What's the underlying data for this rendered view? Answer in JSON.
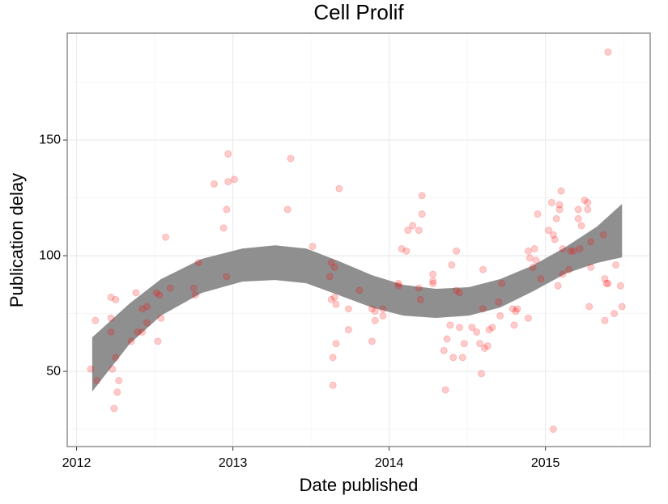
{
  "chart_data": {
    "type": "scatter",
    "title": "Cell Prolif",
    "x_label": "Date published",
    "y_label": "Publication delay",
    "xlim": [
      2011.94,
      2015.67
    ],
    "ylim": [
      17.5,
      196.2
    ],
    "xticks": [
      2012,
      2013,
      2014,
      2015
    ],
    "yticks": [
      50,
      100,
      150
    ],
    "grid": true,
    "series": [
      {
        "color": "#ff0000",
        "opacity": 0.2,
        "x": [
          2012.09,
          2012.12,
          2012.13,
          2012.22,
          2012.22,
          2012.22,
          2012.23,
          2012.24,
          2012.25,
          2012.25,
          2012.26,
          2012.27,
          2012.35,
          2012.38,
          2012.39,
          2012.42,
          2012.42,
          2012.45,
          2012.45,
          2012.51,
          2012.52,
          2012.53,
          2012.54,
          2012.57,
          2012.6,
          2012.75,
          2012.76,
          2012.78,
          2012.88,
          2012.94,
          2012.96,
          2012.96,
          2012.97,
          2012.97,
          2013.01,
          2013.35,
          2013.37,
          2013.51,
          2013.62,
          2013.63,
          2013.63,
          2013.64,
          2013.64,
          2013.65,
          2013.65,
          2013.66,
          2013.66,
          2013.68,
          2013.74,
          2013.74,
          2013.81,
          2013.89,
          2013.89,
          2013.91,
          2013.91,
          2013.96,
          2013.96,
          2014.06,
          2014.06,
          2014.08,
          2014.11,
          2014.12,
          2014.15,
          2014.19,
          2014.19,
          2014.2,
          2014.21,
          2014.21,
          2014.28,
          2014.28,
          2014.28,
          2014.35,
          2014.36,
          2014.37,
          2014.39,
          2014.4,
          2014.41,
          2014.43,
          2014.43,
          2014.45,
          2014.45,
          2014.47,
          2014.48,
          2014.53,
          2014.56,
          2014.58,
          2014.59,
          2014.6,
          2014.6,
          2014.61,
          2014.63,
          2014.64,
          2014.66,
          2014.7,
          2014.71,
          2014.72,
          2014.79,
          2014.8,
          2014.81,
          2014.82,
          2014.89,
          2014.89,
          2014.9,
          2014.92,
          2014.93,
          2014.94,
          2014.95,
          2014.97,
          2015.02,
          2015.04,
          2015.05,
          2015.05,
          2015.06,
          2015.07,
          2015.08,
          2015.09,
          2015.09,
          2015.1,
          2015.11,
          2015.11,
          2015.15,
          2015.16,
          2015.18,
          2015.21,
          2015.21,
          2015.22,
          2015.23,
          2015.25,
          2015.27,
          2015.27,
          2015.28,
          2015.29,
          2015.29,
          2015.37,
          2015.38,
          2015.38,
          2015.39,
          2015.4,
          2015.4,
          2015.44,
          2015.45,
          2015.48,
          2015.49
        ],
        "values": [
          51,
          72,
          46,
          82,
          67,
          73,
          51,
          34,
          81,
          56,
          41,
          46,
          63,
          84,
          67,
          67,
          77,
          78,
          71,
          84,
          63,
          83,
          73,
          108,
          86,
          86,
          83,
          97,
          131,
          112,
          91,
          120,
          144,
          132,
          133,
          120,
          142,
          104,
          91,
          97,
          81,
          44,
          56,
          95,
          82,
          79,
          62,
          129,
          77,
          68,
          85,
          63,
          77,
          72,
          76,
          77,
          74,
          88,
          87,
          103,
          102,
          111,
          113,
          111,
          86,
          81,
          126,
          118,
          92,
          89,
          88,
          59,
          42,
          64,
          70,
          96,
          56,
          102,
          85,
          69,
          84,
          56,
          62,
          69,
          67,
          62,
          49,
          77,
          94,
          60,
          61,
          68,
          69,
          80,
          74,
          88,
          77,
          70,
          76,
          77,
          102,
          73,
          99,
          95,
          103,
          98,
          118,
          90,
          111,
          123,
          25,
          109,
          107,
          116,
          87,
          120,
          122,
          128,
          103,
          92,
          94,
          102,
          102,
          116,
          120,
          103,
          113,
          124,
          123,
          120,
          78,
          95,
          106,
          109,
          90,
          72,
          88,
          188,
          88,
          75,
          96,
          87,
          78
        ]
      }
    ],
    "band": {
      "color": "#8f8f8f",
      "x": [
        2012.1,
        2012.34,
        2012.54,
        2012.8,
        2013.06,
        2013.27,
        2013.47,
        2013.68,
        2013.89,
        2014.09,
        2014.3,
        2014.51,
        2014.71,
        2014.92,
        2015.13,
        2015.33,
        2015.49
      ],
      "upper": [
        64.7,
        79.4,
        89.9,
        98.6,
        103.1,
        104.5,
        103.1,
        97.6,
        91.6,
        87.4,
        85.7,
        86.4,
        89.9,
        95.8,
        103.8,
        112.6,
        122.4
      ],
      "lower": [
        41.3,
        61.9,
        74.1,
        83.9,
        88.8,
        89.5,
        88.1,
        82.9,
        77.6,
        74.1,
        73.1,
        74.1,
        77.6,
        84.6,
        92.3,
        96.9,
        99.3
      ]
    }
  }
}
